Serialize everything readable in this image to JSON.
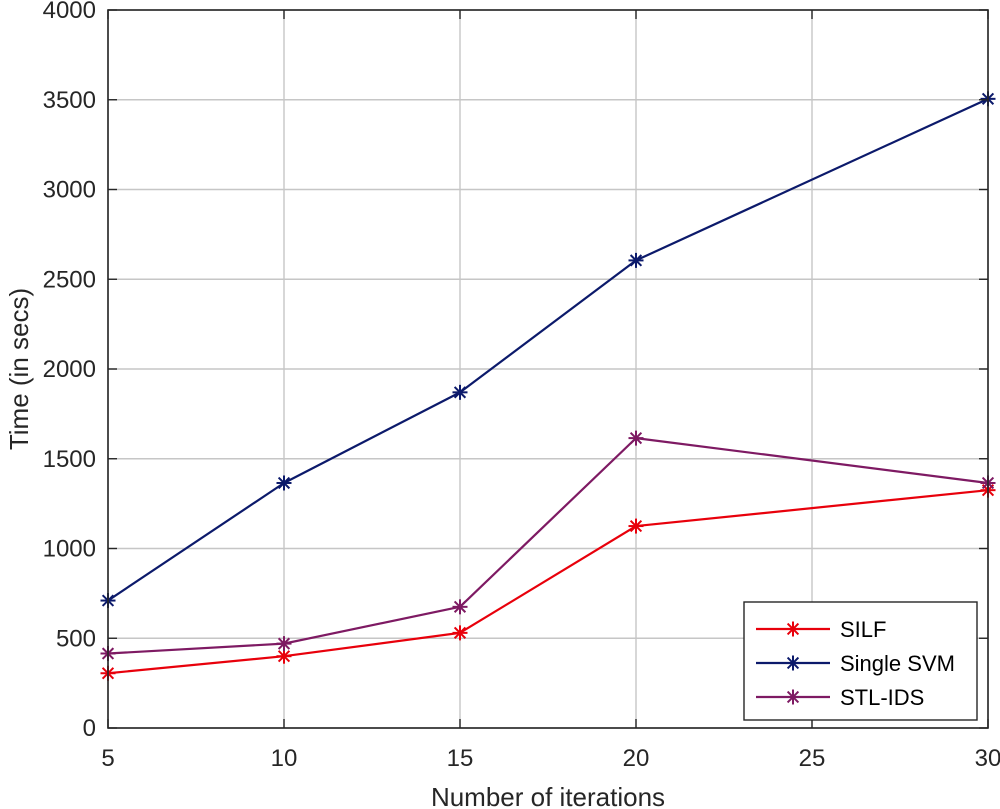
{
  "chart_data": {
    "type": "line",
    "title": "",
    "xlabel": "Number of iterations",
    "ylabel": "Time (in secs)",
    "xlim": [
      5,
      30
    ],
    "ylim": [
      0,
      4000
    ],
    "xticks": [
      5,
      10,
      15,
      20,
      25,
      30
    ],
    "yticks": [
      0,
      500,
      1000,
      1500,
      2000,
      2500,
      3000,
      3500,
      4000
    ],
    "grid": true,
    "legend_position": "bottom-right",
    "marker": "asterisk",
    "x": [
      5,
      10,
      15,
      20,
      30
    ],
    "series": [
      {
        "name": "SILF",
        "color": "#e8000b",
        "values": [
          305,
          400,
          530,
          1125,
          1325
        ]
      },
      {
        "name": "Single SVM",
        "color": "#0c1a6b",
        "values": [
          710,
          1365,
          1870,
          2605,
          3505
        ]
      },
      {
        "name": "STL-IDS",
        "color": "#7e1a63",
        "values": [
          415,
          470,
          675,
          1615,
          1365
        ]
      }
    ]
  }
}
